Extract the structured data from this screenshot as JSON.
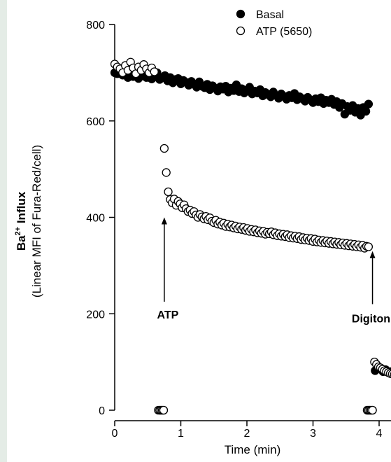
{
  "chart_data": {
    "type": "scatter",
    "title": "",
    "xlabel": "Time (min)",
    "ylabel_line1_main": "Ba",
    "ylabel_line1_sup": "2+",
    "ylabel_line1_rest": " Influx",
    "ylabel_line2": "(Linear MFI of Fura-Red/cell)",
    "xlim": [
      0,
      4.3
    ],
    "ylim": [
      0,
      800
    ],
    "xticks": [
      0,
      1,
      2,
      3,
      4
    ],
    "yticks": [
      0,
      200,
      400,
      600,
      800
    ],
    "legend_position": "top-right",
    "series": [
      {
        "name": "Basal",
        "marker": "filled-circle",
        "color": "#000000",
        "points": [
          [
            0.0,
            700
          ],
          [
            0.04,
            698
          ],
          [
            0.08,
            705
          ],
          [
            0.12,
            695
          ],
          [
            0.16,
            700
          ],
          [
            0.2,
            690
          ],
          [
            0.24,
            697
          ],
          [
            0.28,
            692
          ],
          [
            0.32,
            700
          ],
          [
            0.36,
            688
          ],
          [
            0.4,
            693
          ],
          [
            0.44,
            702
          ],
          [
            0.48,
            690
          ],
          [
            0.52,
            696
          ],
          [
            0.56,
            687
          ],
          [
            0.6,
            694
          ],
          [
            0.64,
            700
          ],
          [
            0.68,
            686
          ],
          [
            0.72,
            690
          ],
          [
            0.76,
            694
          ],
          [
            0.8,
            683
          ],
          [
            0.84,
            690
          ],
          [
            0.88,
            679
          ],
          [
            0.92,
            686
          ],
          [
            0.96,
            688
          ],
          [
            1.0,
            677
          ],
          [
            1.04,
            684
          ],
          [
            1.08,
            680
          ],
          [
            1.12,
            674
          ],
          [
            1.16,
            682
          ],
          [
            1.2,
            676
          ],
          [
            1.24,
            670
          ],
          [
            1.28,
            681
          ],
          [
            1.32,
            672
          ],
          [
            1.36,
            669
          ],
          [
            1.4,
            676
          ],
          [
            1.44,
            665
          ],
          [
            1.48,
            673
          ],
          [
            1.52,
            668
          ],
          [
            1.56,
            662
          ],
          [
            1.6,
            671
          ],
          [
            1.64,
            666
          ],
          [
            1.68,
            672
          ],
          [
            1.72,
            660
          ],
          [
            1.76,
            668
          ],
          [
            1.8,
            663
          ],
          [
            1.84,
            675
          ],
          [
            1.88,
            661
          ],
          [
            1.92,
            667
          ],
          [
            1.96,
            658
          ],
          [
            2.0,
            664
          ],
          [
            2.04,
            670
          ],
          [
            2.08,
            656
          ],
          [
            2.12,
            662
          ],
          [
            2.16,
            658
          ],
          [
            2.2,
            665
          ],
          [
            2.24,
            652
          ],
          [
            2.28,
            659
          ],
          [
            2.32,
            655
          ],
          [
            2.36,
            650
          ],
          [
            2.4,
            660
          ],
          [
            2.44,
            653
          ],
          [
            2.48,
            647
          ],
          [
            2.52,
            656
          ],
          [
            2.56,
            651
          ],
          [
            2.6,
            645
          ],
          [
            2.64,
            653
          ],
          [
            2.68,
            648
          ],
          [
            2.72,
            657
          ],
          [
            2.76,
            644
          ],
          [
            2.8,
            650
          ],
          [
            2.84,
            646
          ],
          [
            2.88,
            641
          ],
          [
            2.92,
            649
          ],
          [
            2.96,
            644
          ],
          [
            3.0,
            638
          ],
          [
            3.04,
            646
          ],
          [
            3.08,
            640
          ],
          [
            3.12,
            648
          ],
          [
            3.16,
            636
          ],
          [
            3.2,
            643
          ],
          [
            3.24,
            638
          ],
          [
            3.28,
            645
          ],
          [
            3.32,
            634
          ],
          [
            3.36,
            640
          ],
          [
            3.4,
            628
          ],
          [
            3.44,
            636
          ],
          [
            3.48,
            614
          ],
          [
            3.52,
            630
          ],
          [
            3.56,
            622
          ],
          [
            3.6,
            632
          ],
          [
            3.64,
            618
          ],
          [
            3.68,
            626
          ],
          [
            3.72,
            612
          ],
          [
            3.76,
            628
          ],
          [
            3.8,
            620
          ],
          [
            3.84,
            635
          ],
          [
            0.68,
            0
          ],
          [
            0.7,
            0
          ],
          [
            0.72,
            0
          ],
          [
            0.74,
            0
          ],
          [
            3.82,
            0
          ],
          [
            3.84,
            0
          ],
          [
            3.86,
            0
          ],
          [
            3.88,
            0
          ],
          [
            3.9,
            0
          ],
          [
            3.94,
            82
          ],
          [
            3.98,
            90
          ],
          [
            4.02,
            86
          ],
          [
            4.06,
            80
          ],
          [
            4.1,
            84
          ],
          [
            4.14,
            78
          ],
          [
            4.18,
            80
          ],
          [
            4.22,
            76
          ],
          [
            4.26,
            74
          ]
        ]
      },
      {
        "name": "ATP (5650)",
        "marker": "open-circle",
        "color": "#000000",
        "points": [
          [
            0.0,
            718
          ],
          [
            0.04,
            712
          ],
          [
            0.08,
            708
          ],
          [
            0.12,
            700
          ],
          [
            0.16,
            715
          ],
          [
            0.2,
            705
          ],
          [
            0.24,
            722
          ],
          [
            0.28,
            710
          ],
          [
            0.32,
            698
          ],
          [
            0.36,
            712
          ],
          [
            0.4,
            705
          ],
          [
            0.44,
            717
          ],
          [
            0.48,
            708
          ],
          [
            0.52,
            700
          ],
          [
            0.56,
            710
          ],
          [
            0.6,
            702
          ],
          [
            0.66,
            0
          ],
          [
            0.68,
            0
          ],
          [
            0.7,
            0
          ],
          [
            0.72,
            0
          ],
          [
            0.74,
            0
          ],
          [
            0.75,
            543
          ],
          [
            0.78,
            493
          ],
          [
            0.81,
            453
          ],
          [
            0.84,
            437
          ],
          [
            0.87,
            430
          ],
          [
            0.9,
            438
          ],
          [
            0.93,
            425
          ],
          [
            0.96,
            433
          ],
          [
            0.99,
            428
          ],
          [
            1.02,
            420
          ],
          [
            1.05,
            426
          ],
          [
            1.08,
            418
          ],
          [
            1.11,
            412
          ],
          [
            1.14,
            415
          ],
          [
            1.17,
            408
          ],
          [
            1.2,
            412
          ],
          [
            1.23,
            405
          ],
          [
            1.26,
            400
          ],
          [
            1.29,
            406
          ],
          [
            1.32,
            401
          ],
          [
            1.35,
            397
          ],
          [
            1.38,
            402
          ],
          [
            1.41,
            395
          ],
          [
            1.44,
            399
          ],
          [
            1.47,
            392
          ],
          [
            1.5,
            389
          ],
          [
            1.53,
            394
          ],
          [
            1.56,
            386
          ],
          [
            1.59,
            390
          ],
          [
            1.62,
            384
          ],
          [
            1.65,
            388
          ],
          [
            1.68,
            381
          ],
          [
            1.71,
            386
          ],
          [
            1.74,
            380
          ],
          [
            1.77,
            384
          ],
          [
            1.8,
            378
          ],
          [
            1.83,
            382
          ],
          [
            1.86,
            376
          ],
          [
            1.89,
            380
          ],
          [
            1.92,
            375
          ],
          [
            1.95,
            379
          ],
          [
            1.98,
            373
          ],
          [
            2.01,
            377
          ],
          [
            2.04,
            371
          ],
          [
            2.07,
            375
          ],
          [
            2.1,
            370
          ],
          [
            2.13,
            374
          ],
          [
            2.16,
            368
          ],
          [
            2.19,
            372
          ],
          [
            2.22,
            367
          ],
          [
            2.25,
            371
          ],
          [
            2.28,
            365
          ],
          [
            2.31,
            369
          ],
          [
            2.34,
            366
          ],
          [
            2.37,
            370
          ],
          [
            2.4,
            364
          ],
          [
            2.43,
            368
          ],
          [
            2.46,
            362
          ],
          [
            2.49,
            366
          ],
          [
            2.52,
            361
          ],
          [
            2.55,
            365
          ],
          [
            2.58,
            360
          ],
          [
            2.61,
            364
          ],
          [
            2.64,
            358
          ],
          [
            2.67,
            362
          ],
          [
            2.7,
            357
          ],
          [
            2.73,
            361
          ],
          [
            2.76,
            356
          ],
          [
            2.79,
            360
          ],
          [
            2.82,
            354
          ],
          [
            2.85,
            358
          ],
          [
            2.88,
            353
          ],
          [
            2.91,
            357
          ],
          [
            2.94,
            352
          ],
          [
            2.97,
            356
          ],
          [
            3.0,
            350
          ],
          [
            3.03,
            355
          ],
          [
            3.06,
            349
          ],
          [
            3.09,
            353
          ],
          [
            3.12,
            348
          ],
          [
            3.15,
            352
          ],
          [
            3.18,
            347
          ],
          [
            3.21,
            351
          ],
          [
            3.24,
            346
          ],
          [
            3.27,
            350
          ],
          [
            3.3,
            345
          ],
          [
            3.33,
            349
          ],
          [
            3.36,
            344
          ],
          [
            3.39,
            348
          ],
          [
            3.42,
            343
          ],
          [
            3.45,
            347
          ],
          [
            3.48,
            342
          ],
          [
            3.51,
            346
          ],
          [
            3.54,
            341
          ],
          [
            3.57,
            345
          ],
          [
            3.6,
            340
          ],
          [
            3.63,
            344
          ],
          [
            3.66,
            339
          ],
          [
            3.69,
            343
          ],
          [
            3.72,
            338
          ],
          [
            3.75,
            342
          ],
          [
            3.78,
            336
          ],
          [
            3.81,
            340
          ],
          [
            3.84,
            339
          ],
          [
            3.82,
            0
          ],
          [
            3.84,
            0
          ],
          [
            3.86,
            0
          ],
          [
            3.88,
            0
          ],
          [
            3.9,
            0
          ],
          [
            3.93,
            100
          ],
          [
            3.96,
            95
          ],
          [
            3.99,
            90
          ],
          [
            4.02,
            88
          ],
          [
            4.05,
            85
          ],
          [
            4.08,
            82
          ],
          [
            4.11,
            80
          ],
          [
            4.14,
            78
          ],
          [
            4.17,
            76
          ],
          [
            4.2,
            75
          ],
          [
            4.23,
            74
          ],
          [
            4.26,
            72
          ],
          [
            4.28,
            70
          ]
        ]
      }
    ],
    "annotations": [
      {
        "text": "ATP",
        "arrow_x": 0.75,
        "arrow_y_from": 225,
        "arrow_y_to": 400
      },
      {
        "text": "Digitonin",
        "arrow_x": 3.9,
        "arrow_y_from": 220,
        "arrow_y_to": 330
      }
    ]
  }
}
